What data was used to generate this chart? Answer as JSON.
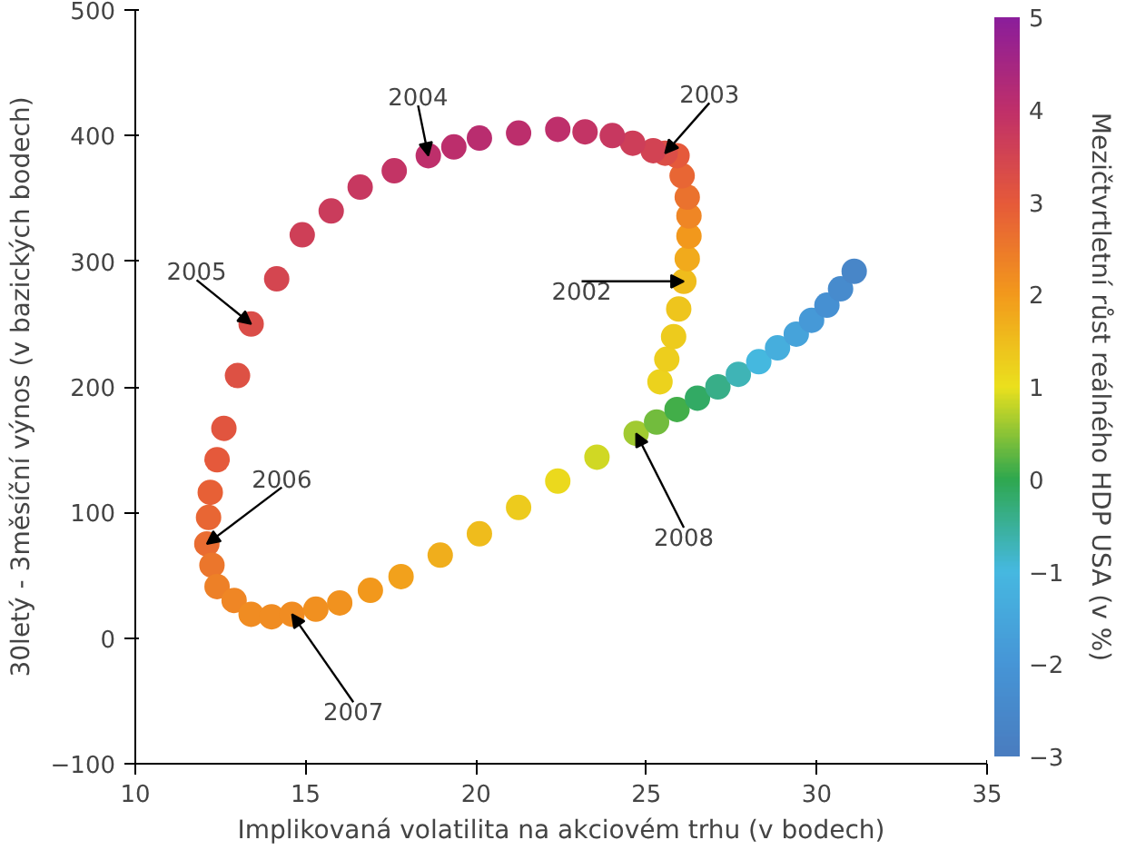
{
  "chart_data": {
    "type": "scatter",
    "xlabel": "Implikovaná volatilita na akciovém trhu (v bodech)",
    "ylabel": "30letý - 3měsíční výnos (v bazických bodech)",
    "clabel": "Mezičtvrtletní růst reálného HDP USA (v %)",
    "x": [
      25.4,
      25.6,
      25.8,
      25.95,
      26.1,
      26.2,
      26.25,
      26.25,
      26.2,
      26.05,
      25.9,
      25.55,
      25.2,
      24.6,
      24.0,
      23.2,
      22.4,
      21.25,
      20.1,
      19.35,
      18.6,
      17.6,
      16.6,
      15.75,
      14.9,
      14.15,
      13.4,
      13.0,
      12.6,
      12.4,
      12.2,
      12.15,
      12.1,
      12.25,
      12.4,
      12.9,
      13.4,
      14.0,
      14.6,
      15.3,
      16.0,
      16.9,
      17.8,
      18.95,
      20.1,
      21.25,
      22.4,
      23.55,
      24.7,
      25.3,
      25.9,
      26.5,
      27.1,
      27.7,
      28.3,
      28.85,
      29.4,
      29.85,
      30.3,
      30.7,
      31.1
    ],
    "values": [
      204,
      222,
      240,
      262,
      284,
      302,
      320,
      336,
      351,
      368,
      384,
      386,
      388,
      394,
      400,
      403,
      405,
      402,
      398,
      391,
      384,
      372,
      359,
      340,
      321,
      286,
      250,
      209,
      167,
      142,
      116,
      96,
      75,
      58,
      41,
      30,
      19,
      17,
      19,
      23,
      28,
      38,
      49,
      66,
      83,
      104,
      125,
      144,
      163,
      172,
      182,
      191,
      200,
      210,
      220,
      231,
      242,
      253,
      265,
      278,
      292
    ],
    "cvalues": [
      1.2,
      1.25,
      1.3,
      1.4,
      1.5,
      1.75,
      2.0,
      2.3,
      2.6,
      2.8,
      3.0,
      3.25,
      3.5,
      3.65,
      3.8,
      3.9,
      4.0,
      4.05,
      4.1,
      4.05,
      4.0,
      3.9,
      3.8,
      3.7,
      3.6,
      3.45,
      3.3,
      3.2,
      3.1,
      3.0,
      2.9,
      2.8,
      2.7,
      2.55,
      2.4,
      2.3,
      2.2,
      2.2,
      2.2,
      2.15,
      2.1,
      2.0,
      1.9,
      1.7,
      1.5,
      1.3,
      1.1,
      0.85,
      0.6,
      0.35,
      0.1,
      -0.15,
      -0.4,
      -0.7,
      -1.0,
      -1.3,
      -1.6,
      -1.9,
      -2.2,
      -2.4,
      -2.6
    ],
    "xlim": [
      10,
      35
    ],
    "xticks": [
      10,
      15,
      20,
      25,
      30,
      35
    ],
    "ylim": [
      -100,
      500
    ],
    "yticks": [
      -100,
      0,
      100,
      200,
      300,
      400,
      500
    ],
    "clim": [
      -3,
      5
    ],
    "cticks": [
      -3,
      -2,
      -1,
      0,
      1,
      2,
      3,
      4,
      5
    ],
    "grid": false,
    "marker": "circle",
    "annotations": [
      {
        "text": "2002",
        "x": 26.1,
        "y": 284
      },
      {
        "text": "2003",
        "x": 25.55,
        "y": 386
      },
      {
        "text": "2004",
        "x": 18.6,
        "y": 384
      },
      {
        "text": "2005",
        "x": 13.4,
        "y": 250
      },
      {
        "text": "2006",
        "x": 12.1,
        "y": 75
      },
      {
        "text": "2007",
        "x": 14.6,
        "y": 19
      },
      {
        "text": "2008",
        "x": 24.7,
        "y": 163
      }
    ]
  }
}
